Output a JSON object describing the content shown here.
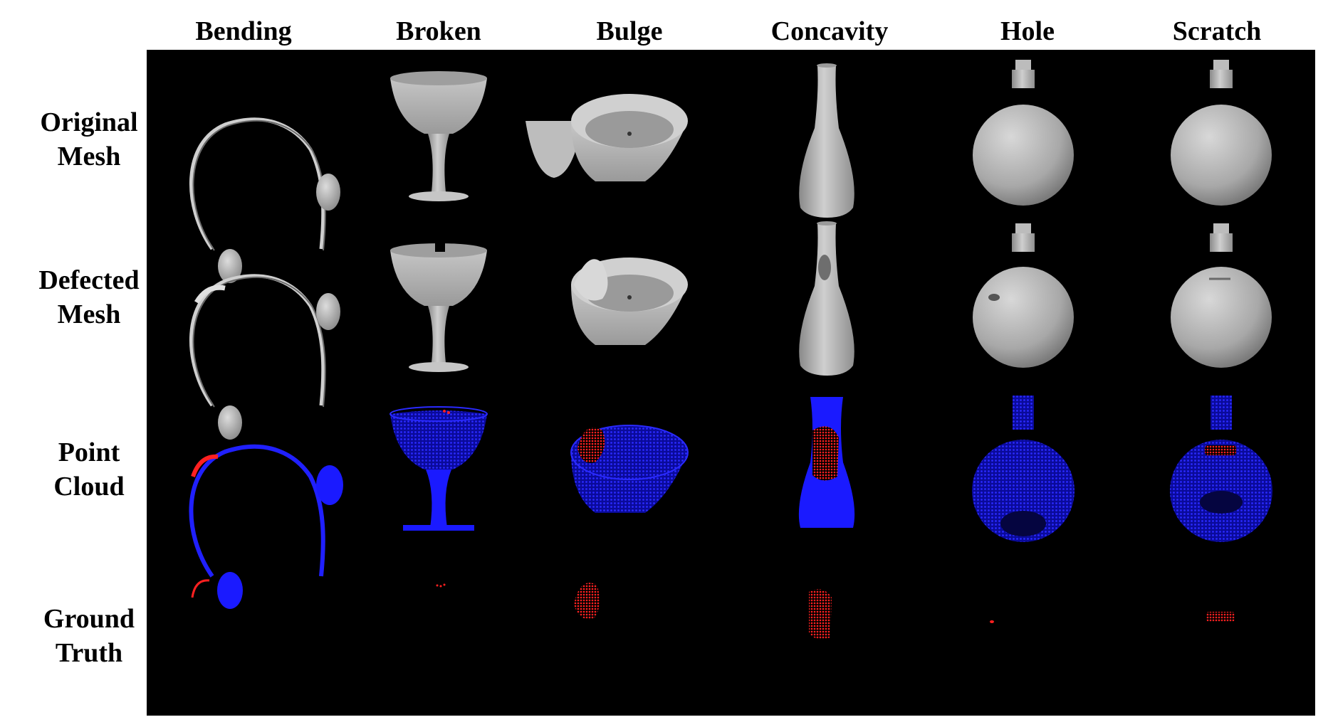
{
  "columns": [
    "Bending",
    "Broken",
    "Bulge",
    "Concavity",
    "Hole",
    "Scratch"
  ],
  "rows": [
    {
      "line1": "Original",
      "line2": "Mesh"
    },
    {
      "line1": "Defected",
      "line2": "Mesh"
    },
    {
      "line1": "Point",
      "line2": "Cloud"
    },
    {
      "line1": "Ground",
      "line2": "Truth"
    }
  ],
  "colors": {
    "panel_background": "#000000",
    "mesh": "#b8b8b8",
    "normal_points": "#1414ff",
    "defect_points": "#ff1a1a"
  }
}
